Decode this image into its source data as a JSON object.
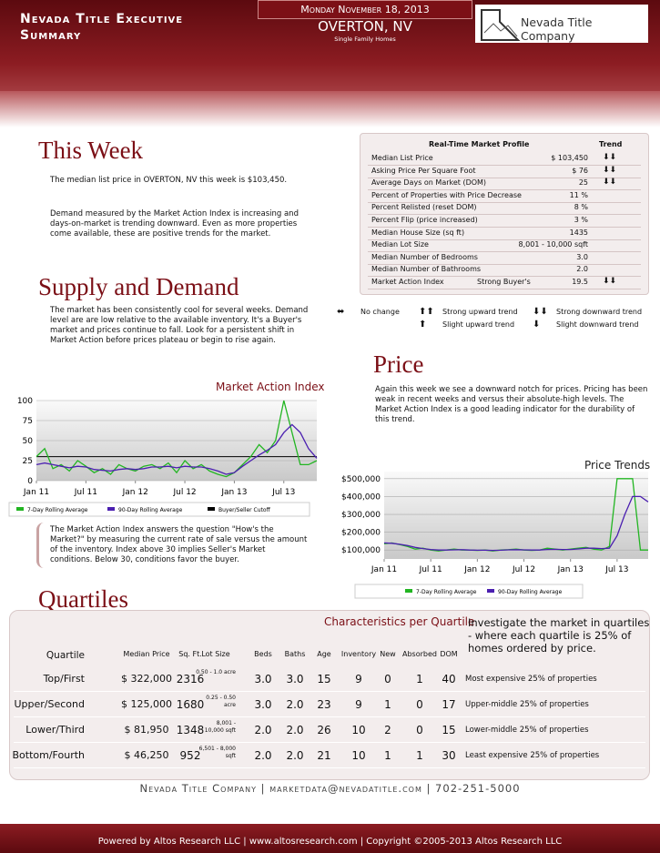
{
  "header": {
    "title": "Nevada Title Executive Summary",
    "date": "Monday November 18, 2013",
    "location": "OVERTON, NV",
    "subtitle": "Single Family Homes",
    "logo": "Nevada Title Company"
  },
  "this_week": {
    "title": "This Week",
    "paragraphs": [
      "The median list price in OVERTON, NV this week is $103,450.",
      "Demand measured by the Market Action Index is increasing and days-on-market is trending downward. Even as more properties come available, these are positive trends for the market."
    ]
  },
  "profile": {
    "title": "Real-Time Market Profile",
    "trend_header": "Trend",
    "rows": [
      {
        "label": "Median List Price",
        "value": "$ 103,450",
        "trend": "⬇⬇"
      },
      {
        "label": "Asking Price Per Square Foot",
        "value": "$ 76",
        "trend": "⬇⬇"
      },
      {
        "label": "Average Days on Market (DOM)",
        "value": "25",
        "trend": "⬇⬇"
      },
      {
        "label": "Percent of Properties with Price Decrease",
        "value": "11 %"
      },
      {
        "label": "Percent Relisted (reset DOM)",
        "value": "8 %"
      },
      {
        "label": "Percent Flip (price increased)",
        "value": "3 %"
      },
      {
        "label": "Median House Size (sq ft)",
        "value": "1435"
      },
      {
        "label": "Median Lot Size",
        "value": "8,001 - 10,000 sqft"
      },
      {
        "label": "Median Number of Bedrooms",
        "value": "3.0"
      },
      {
        "label": "Median Number of Bathrooms",
        "value": "2.0"
      },
      {
        "label": "Market Action Index",
        "note": "Strong Buyer's",
        "value": "19.5",
        "trend": "⬇⬇"
      }
    ]
  },
  "trend_legend": [
    {
      "symbol": "⬌",
      "label": "No change"
    },
    {
      "symbol": "⬆⬆",
      "label": "Strong upward trend"
    },
    {
      "symbol": "⬇⬇",
      "label": "Strong downward trend"
    },
    {
      "symbol": "⬆",
      "label": "Slight upward trend"
    },
    {
      "symbol": "⬇",
      "label": "Slight downward trend"
    }
  ],
  "supply_demand": {
    "title": "Supply and Demand",
    "text": "The market has been consistently cool for several weeks.  Demand level are are low relative to the available inventory.  It's a Buyer's market and prices continue to fall.  Look for a persistent shift in Market Action before prices plateau or begin to rise again.",
    "explanation": "The Market Action Index answers the question \"How's the Market?\" by measuring the current rate of sale versus the amount of the inventory.  Index above 30 implies Seller's Market conditions. Below 30, conditions favor the buyer."
  },
  "price": {
    "title": "Price",
    "text": "Again this week we see a downward notch for prices. Pricing has been weak in recent weeks and versus their absolute-high levels. The Market Action Index is a good leading indicator for the durability of this trend."
  },
  "chart_data": [
    {
      "type": "line",
      "title": "Market Action Index",
      "categories": [
        "Jan 11",
        null,
        null,
        null,
        null,
        null,
        "Jul 11",
        null,
        null,
        null,
        null,
        null,
        "Jan 12",
        null,
        null,
        null,
        null,
        null,
        "Jul 12",
        null,
        null,
        null,
        null,
        null,
        "Jan 13",
        null,
        null,
        null,
        null,
        null,
        "Jul 13",
        null,
        null,
        null,
        null
      ],
      "series": [
        {
          "name": "7-Day Rolling Average",
          "color": "#22b522",
          "values": [
            30,
            40,
            15,
            20,
            12,
            25,
            18,
            10,
            15,
            8,
            20,
            15,
            12,
            18,
            20,
            15,
            22,
            10,
            25,
            15,
            20,
            12,
            8,
            5,
            10,
            20,
            30,
            45,
            35,
            50,
            100,
            60,
            20,
            20,
            25
          ]
        },
        {
          "name": "90-Day Rolling Average",
          "color": "#4b1fb0",
          "values": [
            20,
            22,
            20,
            18,
            16,
            18,
            17,
            14,
            13,
            12,
            14,
            15,
            14,
            15,
            17,
            17,
            18,
            16,
            18,
            17,
            17,
            15,
            12,
            8,
            10,
            18,
            25,
            32,
            38,
            45,
            60,
            70,
            60,
            40,
            28
          ]
        }
      ],
      "cutoff": {
        "name": "Buyer/Seller Cutoff",
        "color": "#000000",
        "value": 30
      },
      "ylim": [
        0,
        100
      ],
      "yticks": [
        0,
        25,
        50,
        75,
        100
      ],
      "grid": true
    },
    {
      "type": "line",
      "title": "Price Trends",
      "categories": [
        "Jan 11",
        null,
        null,
        null,
        null,
        null,
        "Jul 11",
        null,
        null,
        null,
        null,
        null,
        "Jan 12",
        null,
        null,
        null,
        null,
        null,
        "Jul 12",
        null,
        null,
        null,
        null,
        null,
        "Jan 13",
        null,
        null,
        null,
        null,
        null,
        "Jul 13",
        null,
        null,
        null,
        null
      ],
      "series": [
        {
          "name": "7-Day Rolling Average",
          "color": "#22b522",
          "values": [
            135000,
            140000,
            130000,
            120000,
            105000,
            110000,
            100000,
            95000,
            100000,
            105000,
            100000,
            100000,
            98000,
            100000,
            95000,
            100000,
            102000,
            105000,
            100000,
            98000,
            100000,
            110000,
            105000,
            100000,
            105000,
            110000,
            115000,
            105000,
            100000,
            120000,
            500000,
            500000,
            500000,
            100000,
            100000
          ]
        },
        {
          "name": "90-Day Rolling Average",
          "color": "#4b1fb0",
          "values": [
            140000,
            138000,
            132000,
            125000,
            115000,
            108000,
            103000,
            100000,
            100000,
            101000,
            102000,
            100000,
            99000,
            99000,
            98000,
            99000,
            101000,
            102000,
            101000,
            100000,
            100000,
            103000,
            104000,
            103000,
            103000,
            106000,
            110000,
            110000,
            108000,
            110000,
            180000,
            300000,
            400000,
            400000,
            370000
          ]
        }
      ],
      "ylim": [
        50000,
        540000
      ],
      "yticks": [
        {
          "value": 100000,
          "label": "$100,000"
        },
        {
          "value": 200000,
          "label": "$200,000"
        },
        {
          "value": 300000,
          "label": "$300,000"
        },
        {
          "value": 400000,
          "label": "$400,000"
        },
        {
          "value": 500000,
          "label": "$500,000"
        }
      ],
      "grid": true
    }
  ],
  "quartiles": {
    "title": "Quartiles",
    "table_title": "Characteristics per Quartile",
    "intro": "Investigate the market in quartiles - where each quartile is 25% of homes ordered by price.",
    "columns": [
      "Quartile",
      "Median Price",
      "Sq. Ft.",
      "Lot Size",
      "Beds",
      "Baths",
      "Age",
      "Inventory",
      "New",
      "Absorbed",
      "DOM"
    ],
    "rows": [
      {
        "cells": [
          "Top/First",
          "$ 322,000",
          "2316",
          "0.50 - 1.0 acre",
          "3.0",
          "3.0",
          "15",
          "9",
          "0",
          "1",
          "40"
        ],
        "description": "Most expensive 25% of properties"
      },
      {
        "cells": [
          "Upper/Second",
          "$ 125,000",
          "1680",
          "0.25 - 0.50 acre",
          "3.0",
          "2.0",
          "23",
          "9",
          "1",
          "0",
          "17"
        ],
        "description": "Upper-middle 25% of properties"
      },
      {
        "cells": [
          "Lower/Third",
          "$ 81,950",
          "1348",
          "8,001 - 10,000 sqft",
          "2.0",
          "2.0",
          "26",
          "10",
          "2",
          "0",
          "15"
        ],
        "description": "Lower-middle 25% of properties"
      },
      {
        "cells": [
          "Bottom/Fourth",
          "$ 46,250",
          "952",
          "6,501 - 8,000 sqft",
          "2.0",
          "2.0",
          "21",
          "10",
          "1",
          "1",
          "30"
        ],
        "description": "Least expensive 25% of properties"
      }
    ]
  },
  "footer": {
    "contact": "Nevada Title Company | marketdata@nevadatitle.com | 702-251-5000",
    "powered": "Powered by Altos Research LLC | www.altosresearch.com | Copyright ©2005-2013 Altos Research LLC"
  }
}
